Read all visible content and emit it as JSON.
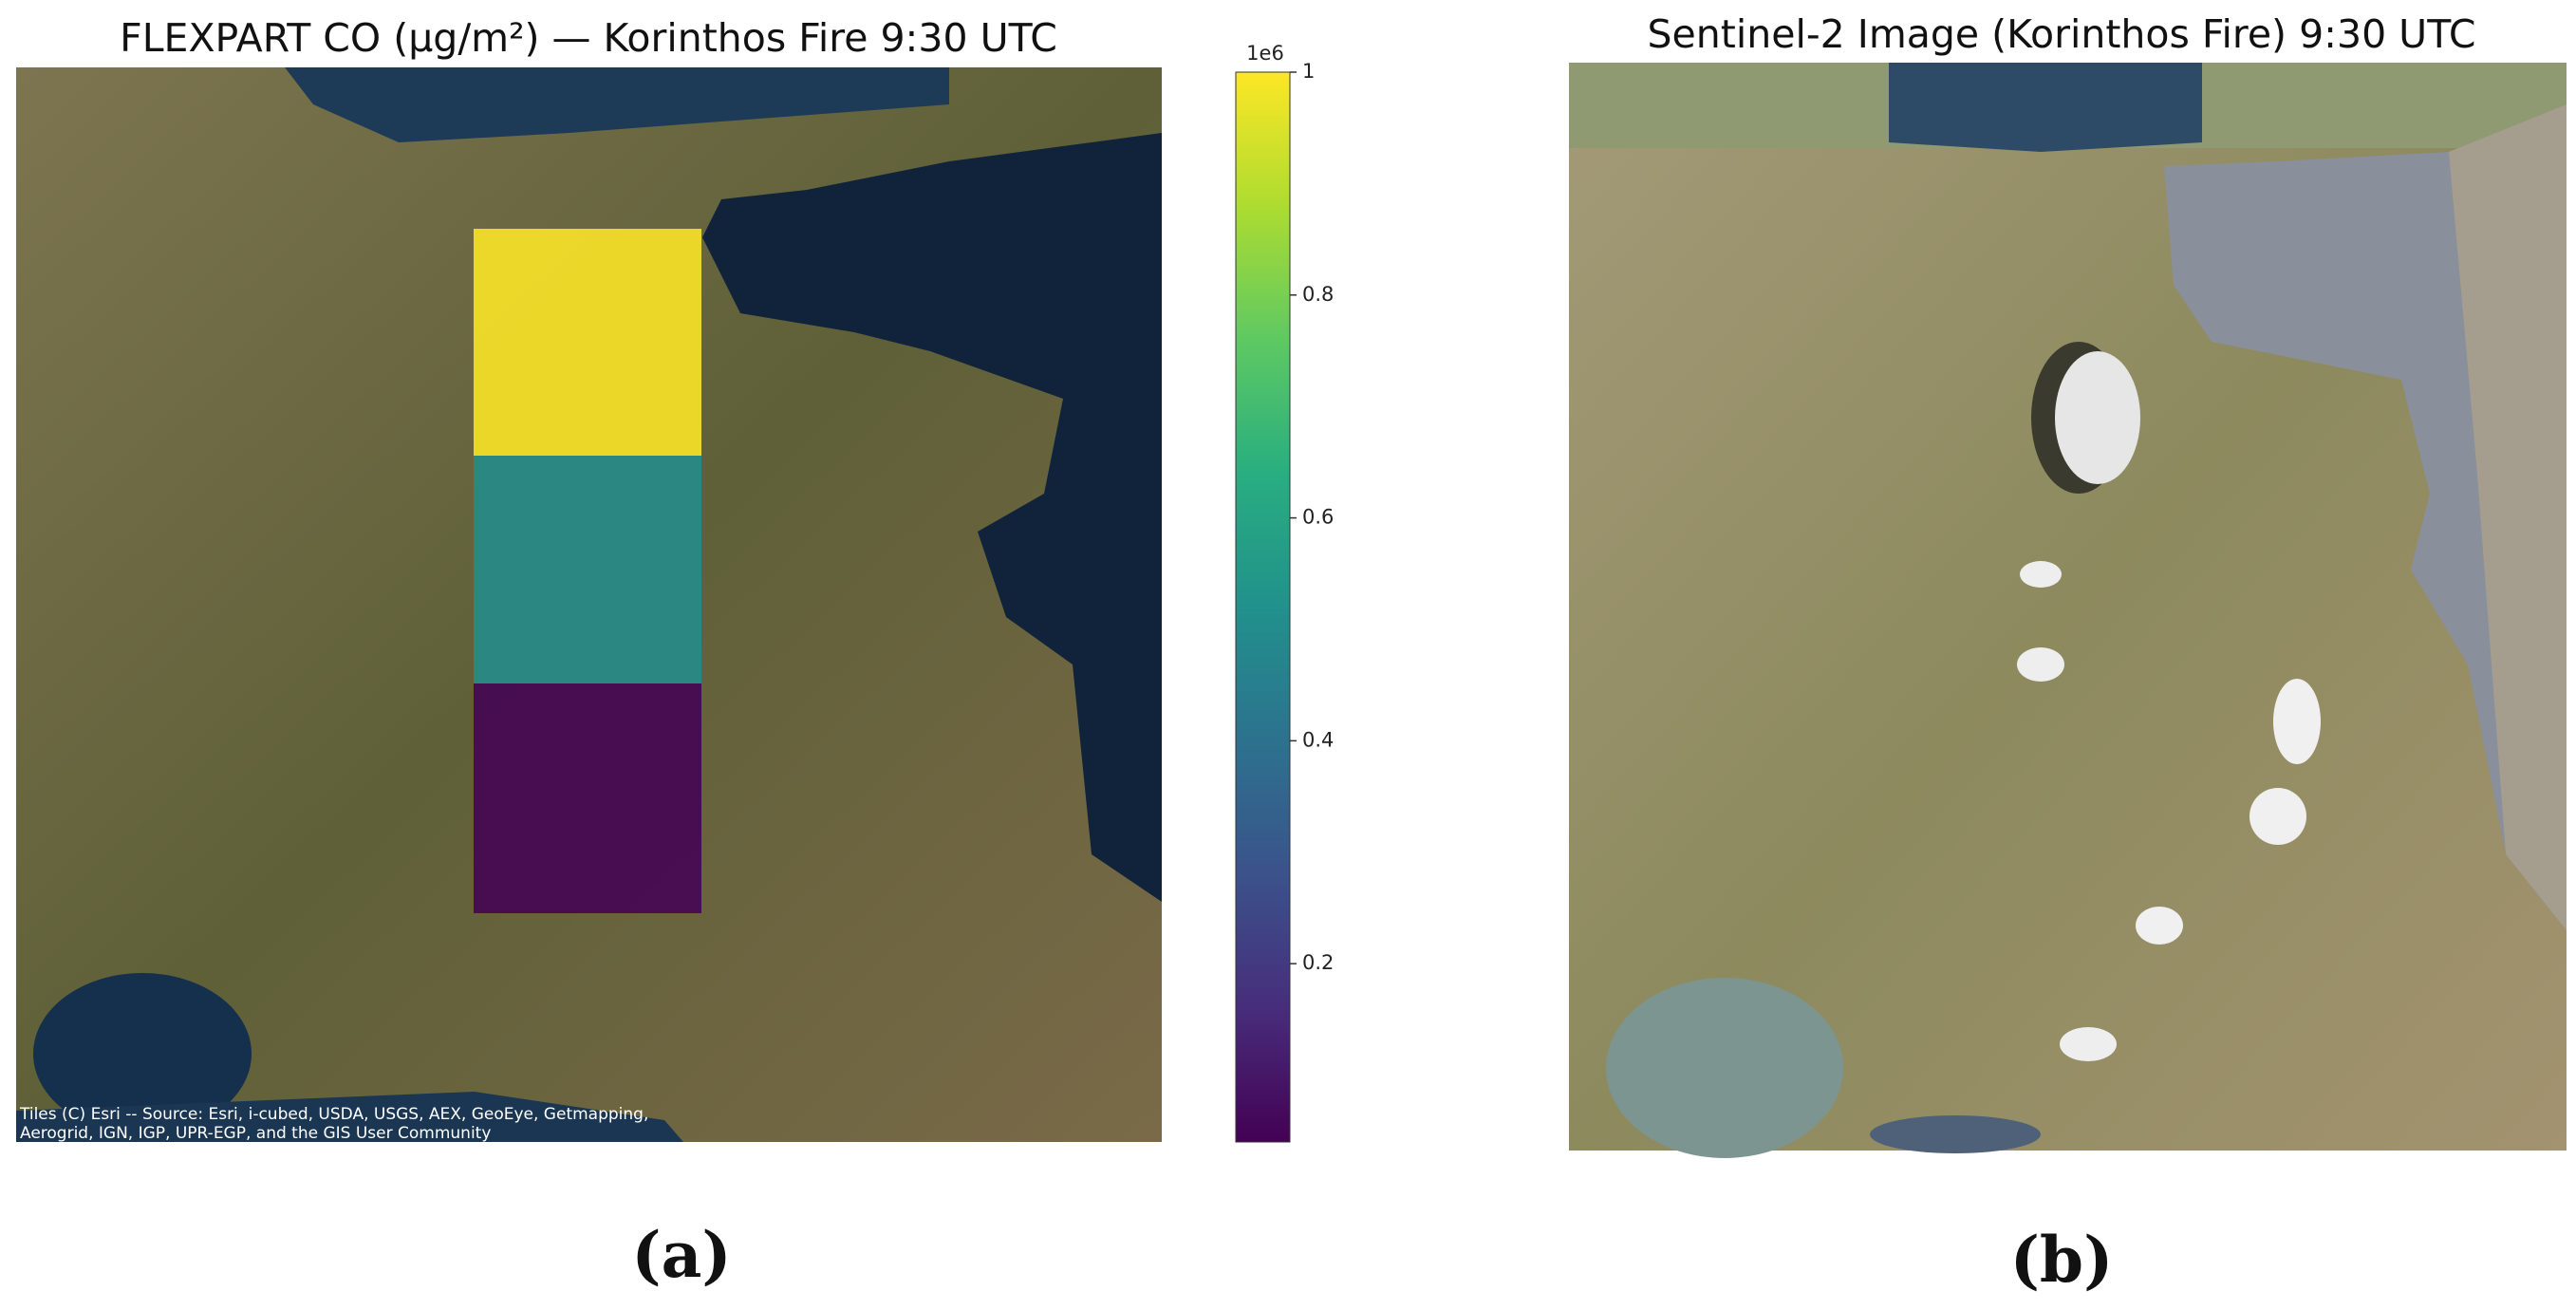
{
  "chart_data": [
    {
      "type": "heatmap",
      "title": "FLEXPART CO (µg/m²) — Korinthos Fire 9:30 UTC",
      "values": [
        1.0,
        0.5,
        0.04
      ],
      "colormap": "viridis",
      "clim": [
        0.04,
        1.0
      ],
      "cticks": [
        0.2,
        0.4,
        0.6,
        0.8,
        1.0
      ],
      "offset_label": "1e6",
      "attribution": [
        "Tiles (C) Esri -- Source: Esri, i-cubed, USDA, USGS, AEX, GeoEye, Getmapping,",
        "Aerogrid, IGN, IGP, UPR-EGP, and the GIS User Community"
      ],
      "panel_label": "(a)"
    },
    {
      "type": "image",
      "title": "Sentinel-2 Image (Korinthos Fire) 9:30 UTC",
      "panel_label": "(b)"
    }
  ]
}
